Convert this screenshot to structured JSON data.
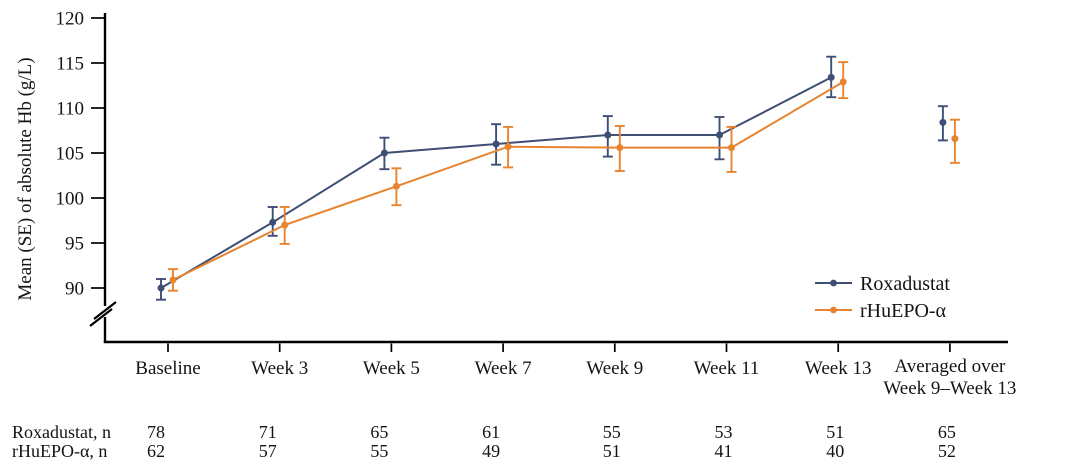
{
  "chart_data": {
    "type": "line",
    "title": "",
    "xlabel": "",
    "ylabel": "Mean (SE) of absolute Hb (g/L)",
    "y_ticks": [
      90,
      95,
      100,
      105,
      110,
      115,
      120
    ],
    "ylim": [
      88,
      120
    ],
    "y_axis_break": true,
    "grid": false,
    "error_bar_type": "SE",
    "legend_position": "inside lower right",
    "connected_points": 7,
    "categories": [
      "Baseline",
      "Week 3",
      "Week 5",
      "Week 7",
      "Week 9",
      "Week 11",
      "Week 13",
      "Averaged over\nWeek 9–Week 13"
    ],
    "series": [
      {
        "name": "Roxadustat",
        "color": "#3e4e74",
        "values": [
          90.0,
          97.3,
          105.0,
          106.0,
          107.0,
          107.0,
          113.4,
          108.4
        ],
        "upper": [
          91.0,
          99.0,
          106.7,
          108.2,
          109.1,
          109.0,
          115.7,
          110.2
        ],
        "lower": [
          88.7,
          95.8,
          103.2,
          103.7,
          104.6,
          104.3,
          111.2,
          106.4
        ]
      },
      {
        "name": "rHuEPO-α",
        "color": "#e8842f",
        "values": [
          90.9,
          97.0,
          101.3,
          105.7,
          105.6,
          105.6,
          112.9,
          106.6
        ],
        "upper": [
          92.1,
          99.0,
          103.3,
          107.9,
          108.0,
          107.9,
          115.1,
          108.7
        ],
        "lower": [
          89.7,
          94.9,
          99.2,
          103.4,
          103.0,
          102.9,
          111.1,
          103.9
        ]
      }
    ]
  },
  "legend": {
    "items": [
      {
        "label": "Roxadustat",
        "color": "#3e4e74"
      },
      {
        "label": "rHuEPO-α",
        "color": "#e8842f"
      }
    ]
  },
  "table": {
    "rows": [
      {
        "label": "Roxadustat, n",
        "values": [
          "78",
          "71",
          "65",
          "61",
          "55",
          "53",
          "51",
          "65"
        ]
      },
      {
        "label": "rHuEPO-α, n",
        "values": [
          "62",
          "57",
          "55",
          "49",
          "51",
          "41",
          "40",
          "52"
        ]
      }
    ]
  }
}
